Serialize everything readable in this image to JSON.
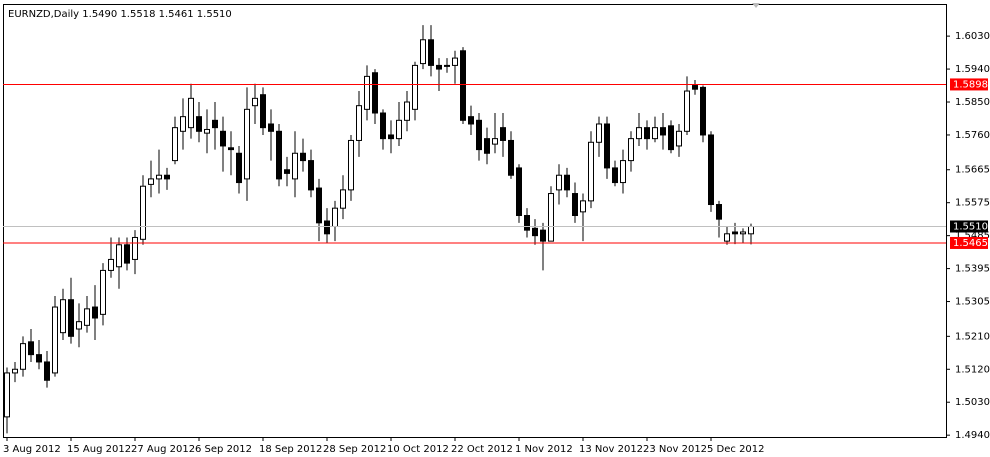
{
  "chart_data": {
    "type": "candlestick",
    "title": "EURNZD,Daily  1.5490 1.5518 1.5461 1.5510",
    "categories": [
      "3 Aug 2012",
      null,
      null,
      null,
      null,
      null,
      null,
      null,
      "15 Aug 2012",
      null,
      null,
      null,
      null,
      null,
      null,
      null,
      "27 Aug 2012",
      null,
      null,
      null,
      null,
      null,
      null,
      null,
      "6 Sep 2012",
      null,
      null,
      null,
      null,
      null,
      null,
      null,
      "18 Sep 2012",
      null,
      null,
      null,
      null,
      null,
      null,
      null,
      "28 Sep 2012",
      null,
      null,
      null,
      null,
      null,
      null,
      null,
      "10 Oct 2012",
      null,
      null,
      null,
      null,
      null,
      null,
      null,
      "22 Oct 2012",
      null,
      null,
      null,
      null,
      null,
      null,
      null,
      "1 Nov 2012",
      null,
      null,
      null,
      null,
      null,
      null,
      null,
      "13 Nov 2012",
      null,
      null,
      null,
      null,
      null,
      null,
      null,
      "23 Nov 2012",
      null,
      null,
      null,
      null,
      null,
      null,
      null,
      "5 Dec 2012",
      null,
      null,
      null,
      null,
      null
    ],
    "open": [
      1.499,
      1.511,
      1.512,
      1.5195,
      1.516,
      1.514,
      1.511,
      1.522,
      1.531,
      1.523,
      1.524,
      1.529,
      1.527,
      1.539,
      1.54,
      1.546,
      1.542,
      1.5475,
      1.5625,
      1.564,
      1.565,
      1.569,
      1.577,
      1.578,
      1.581,
      1.5765,
      1.58,
      1.577,
      1.5725,
      1.571,
      1.564,
      1.584,
      1.587,
      1.579,
      1.577,
      1.5665,
      1.564,
      1.571,
      1.569,
      1.5615,
      1.5525,
      1.551,
      1.556,
      1.561,
      1.5745,
      1.583,
      1.593,
      1.582,
      1.576,
      1.575,
      1.58,
      1.583,
      1.5955,
      1.602,
      1.595,
      1.595,
      1.595,
      1.599,
      1.581,
      1.58,
      1.575,
      1.5735,
      1.578,
      1.5745,
      1.567,
      1.554,
      1.5505,
      1.55,
      1.547,
      1.561,
      1.565,
      1.56,
      1.555,
      1.558,
      1.574,
      1.579,
      1.567,
      1.563,
      1.569,
      1.575,
      1.578,
      1.575,
      1.578,
      1.5785,
      1.573,
      1.577,
      1.5895,
      1.589,
      1.576,
      1.557,
      1.547,
      1.5495,
      1.549,
      1.549
    ],
    "high": [
      1.5125,
      1.514,
      1.521,
      1.523,
      1.52,
      1.517,
      1.532,
      1.534,
      1.537,
      1.53,
      1.532,
      1.535,
      1.541,
      1.548,
      1.548,
      1.548,
      1.55,
      1.565,
      1.569,
      1.572,
      1.567,
      1.581,
      1.586,
      1.59,
      1.585,
      1.583,
      1.585,
      1.581,
      1.577,
      1.573,
      1.589,
      1.59,
      1.589,
      1.583,
      1.579,
      1.57,
      1.577,
      1.575,
      1.572,
      1.564,
      1.556,
      1.558,
      1.565,
      1.576,
      1.588,
      1.595,
      1.594,
      1.583,
      1.58,
      1.585,
      1.588,
      1.596,
      1.606,
      1.606,
      1.597,
      1.597,
      1.599,
      1.6,
      1.584,
      1.582,
      1.578,
      1.582,
      1.582,
      1.577,
      1.568,
      1.556,
      1.553,
      1.552,
      1.562,
      1.568,
      1.567,
      1.563,
      1.56,
      1.577,
      1.581,
      1.581,
      1.569,
      1.572,
      1.577,
      1.582,
      1.58,
      1.581,
      1.582,
      1.58,
      1.579,
      1.592,
      1.591,
      1.5895,
      1.577,
      1.558,
      1.551,
      1.552,
      1.5505,
      1.5518
    ],
    "low": [
      1.4945,
      1.5085,
      1.51,
      1.514,
      1.512,
      1.507,
      1.51,
      1.52,
      1.519,
      1.518,
      1.522,
      1.52,
      1.524,
      1.537,
      1.534,
      1.539,
      1.538,
      1.546,
      1.559,
      1.56,
      1.561,
      1.568,
      1.572,
      1.575,
      1.574,
      1.571,
      1.572,
      1.566,
      1.565,
      1.56,
      1.558,
      1.579,
      1.576,
      1.569,
      1.562,
      1.562,
      1.559,
      1.566,
      1.559,
      1.547,
      1.5465,
      1.547,
      1.553,
      1.558,
      1.57,
      1.58,
      1.579,
      1.572,
      1.571,
      1.573,
      1.577,
      1.58,
      1.594,
      1.592,
      1.588,
      1.593,
      1.59,
      1.579,
      1.576,
      1.569,
      1.568,
      1.571,
      1.57,
      1.564,
      1.552,
      1.548,
      1.546,
      1.539,
      1.547,
      1.557,
      1.559,
      1.552,
      1.547,
      1.556,
      1.57,
      1.564,
      1.562,
      1.56,
      1.566,
      1.573,
      1.572,
      1.574,
      1.572,
      1.571,
      1.57,
      1.576,
      1.587,
      1.574,
      1.555,
      1.548,
      1.546,
      1.5462,
      1.5465,
      1.5461
    ],
    "close": [
      1.511,
      1.512,
      1.519,
      1.516,
      1.514,
      1.509,
      1.529,
      1.531,
      1.521,
      1.525,
      1.5285,
      1.526,
      1.539,
      1.542,
      1.546,
      1.541,
      1.548,
      1.562,
      1.564,
      1.565,
      1.564,
      1.578,
      1.581,
      1.586,
      1.577,
      1.5775,
      1.578,
      1.573,
      1.572,
      1.563,
      1.583,
      1.586,
      1.578,
      1.577,
      1.564,
      1.5655,
      1.571,
      1.569,
      1.561,
      1.552,
      1.549,
      1.556,
      1.561,
      1.5745,
      1.584,
      1.592,
      1.582,
      1.575,
      1.575,
      1.58,
      1.585,
      1.595,
      1.602,
      1.595,
      1.594,
      1.595,
      1.597,
      1.58,
      1.579,
      1.572,
      1.571,
      1.575,
      1.5745,
      1.565,
      1.554,
      1.55,
      1.5485,
      1.547,
      1.56,
      1.565,
      1.561,
      1.554,
      1.558,
      1.574,
      1.579,
      1.567,
      1.563,
      1.569,
      1.575,
      1.578,
      1.575,
      1.578,
      1.576,
      1.572,
      1.577,
      1.588,
      1.5885,
      1.576,
      1.557,
      1.553,
      1.549,
      1.549,
      1.5495,
      1.551
    ],
    "up_color": "#ffffff",
    "down_color": "#000000",
    "ylim": [
      1.4935,
      1.6115
    ],
    "yticks": [
      {
        "value": 1.603,
        "label": "1.6030"
      },
      {
        "value": 1.594,
        "label": "1.5940"
      },
      {
        "value": 1.585,
        "label": "1.5850"
      },
      {
        "value": 1.576,
        "label": "1.5760"
      },
      1.5665,
      1.5575,
      1.5485,
      1.5395,
      1.5305,
      {
        "value": 1.521,
        "label": "1.5210"
      },
      {
        "value": 1.512,
        "label": "1.5120"
      },
      {
        "value": 1.503,
        "label": "1.5030"
      },
      {
        "value": 1.494,
        "label": "1.4940"
      }
    ],
    "hlines": [
      {
        "value": 1.5898,
        "label": "1.5898",
        "color": "#ff0000"
      },
      {
        "value": 1.5465,
        "label": "1.5465",
        "color": "#ff0000"
      },
      {
        "value": 1.551,
        "label": "1.5510",
        "color": "#c0c0c0"
      }
    ]
  }
}
